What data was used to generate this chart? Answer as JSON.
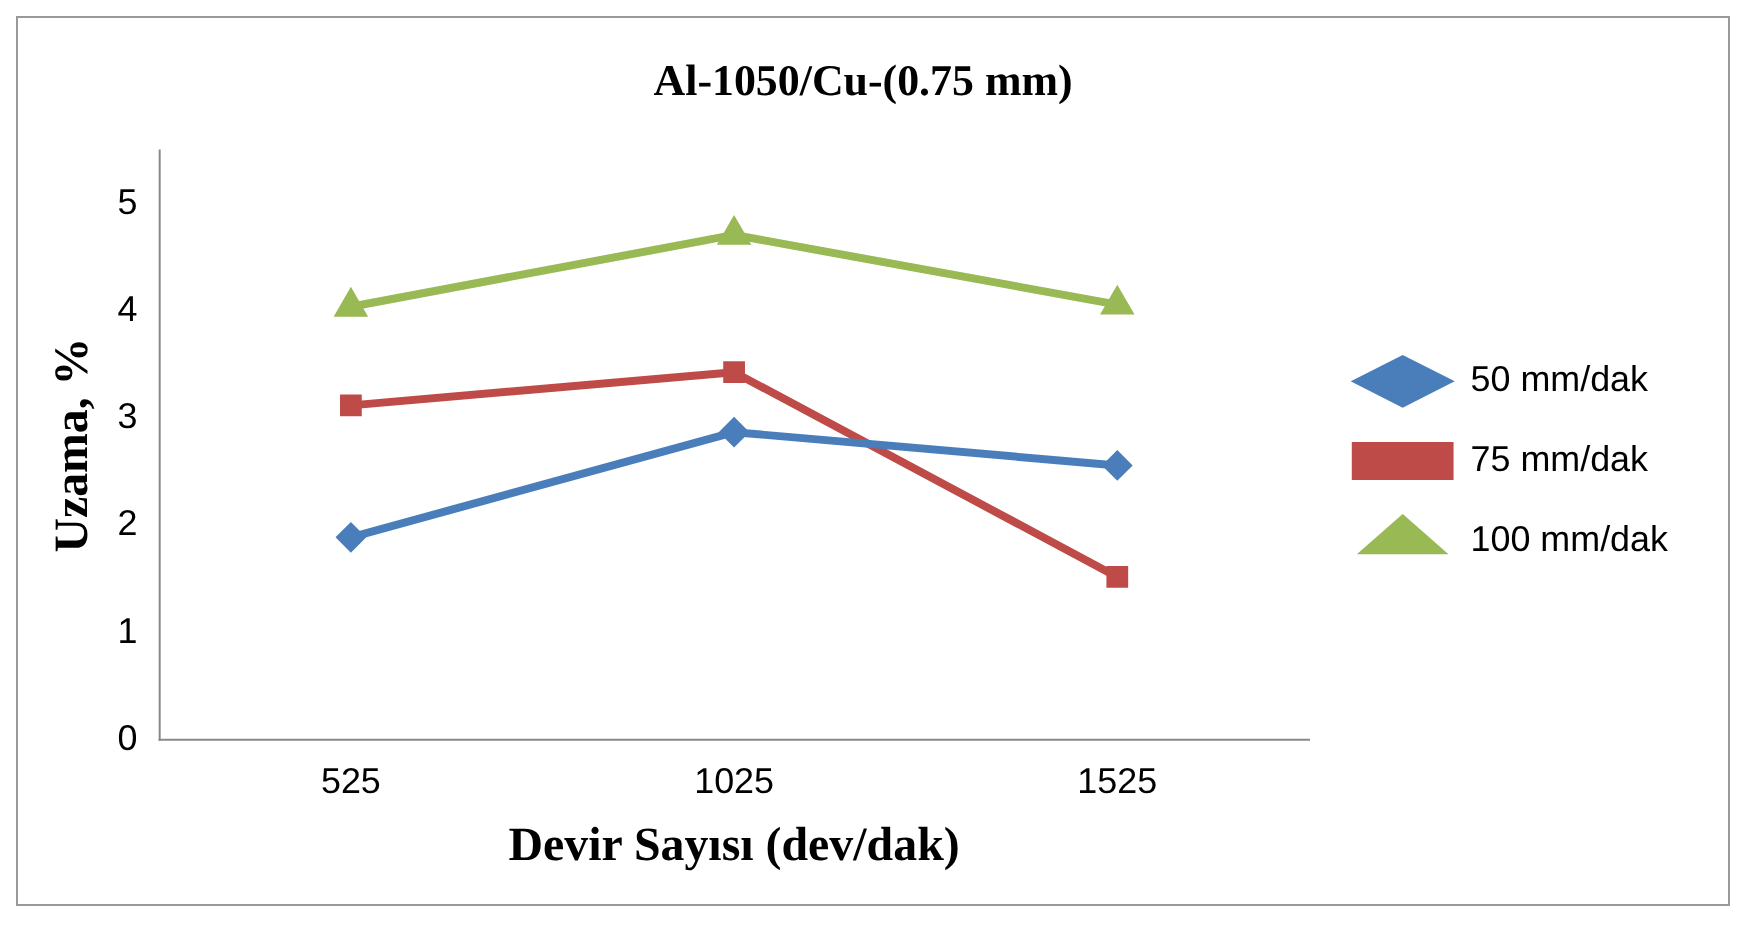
{
  "chart_data": {
    "type": "line",
    "title": "Al-1050/Cu-(0.75 mm)",
    "xlabel": "Devir Sayısı (dev/dak)",
    "ylabel": "Uzama, %",
    "categories": [
      "525",
      "1025",
      "1525"
    ],
    "series": [
      {
        "name": "50 mm/dak",
        "color": "#4a7ebb",
        "marker": "diamond",
        "values": [
          1.89,
          2.87,
          2.56
        ]
      },
      {
        "name": "75 mm/dak",
        "color": "#be4b48",
        "marker": "square",
        "values": [
          3.12,
          3.43,
          1.52
        ]
      },
      {
        "name": "100 mm/dak",
        "color": "#98b954",
        "marker": "triangle",
        "values": [
          4.04,
          4.71,
          4.06
        ]
      }
    ],
    "ylim": [
      0,
      5.5
    ],
    "yticks": [
      0,
      1,
      2,
      3,
      4,
      5
    ],
    "grid": false,
    "legend": "right",
    "line_style": "solid"
  }
}
